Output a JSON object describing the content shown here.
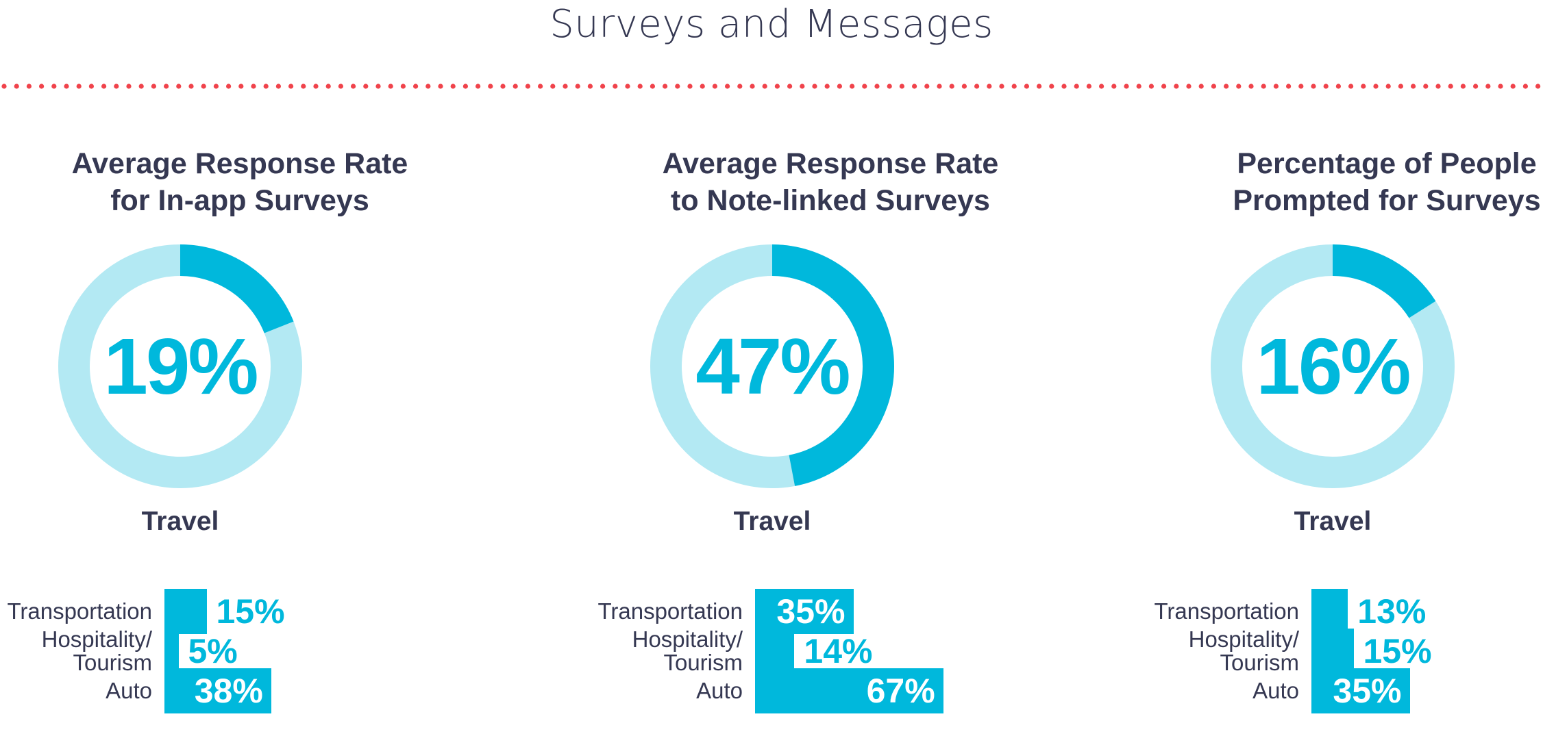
{
  "page": {
    "title": "Surveys and Messages",
    "colors": {
      "accent": "#00b8dc",
      "track": "#b3e9f3",
      "dots": "#f0434b",
      "text": "#353852"
    }
  },
  "chart_data": [
    {
      "type": "donut",
      "title": "Average Response Rate\nfor In-app Surveys",
      "value": 19,
      "value_label": "19%",
      "label": "Travel"
    },
    {
      "type": "bar",
      "orientation": "horizontal",
      "categories": [
        "Transportation",
        "Hospitality/\nTourism",
        "Auto"
      ],
      "values": [
        15,
        5,
        38
      ],
      "value_labels": [
        "15%",
        "5%",
        "38%"
      ]
    },
    {
      "type": "donut",
      "title": "Average Response Rate\nto Note-linked Surveys",
      "value": 47,
      "value_label": "47%",
      "label": "Travel"
    },
    {
      "type": "bar",
      "orientation": "horizontal",
      "categories": [
        "Transportation",
        "Hospitality/\nTourism",
        "Auto"
      ],
      "values": [
        35,
        14,
        67
      ],
      "value_labels": [
        "35%",
        "14%",
        "67%"
      ]
    },
    {
      "type": "donut",
      "title": "Percentage of People\nPrompted for Surveys",
      "value": 16,
      "value_label": "16%",
      "label": "Travel"
    },
    {
      "type": "bar",
      "orientation": "horizontal",
      "categories": [
        "Transportation",
        "Hospitality/\nTourism",
        "Auto"
      ],
      "values": [
        13,
        15,
        35
      ],
      "value_labels": [
        "13%",
        "15%",
        "35%"
      ]
    }
  ]
}
